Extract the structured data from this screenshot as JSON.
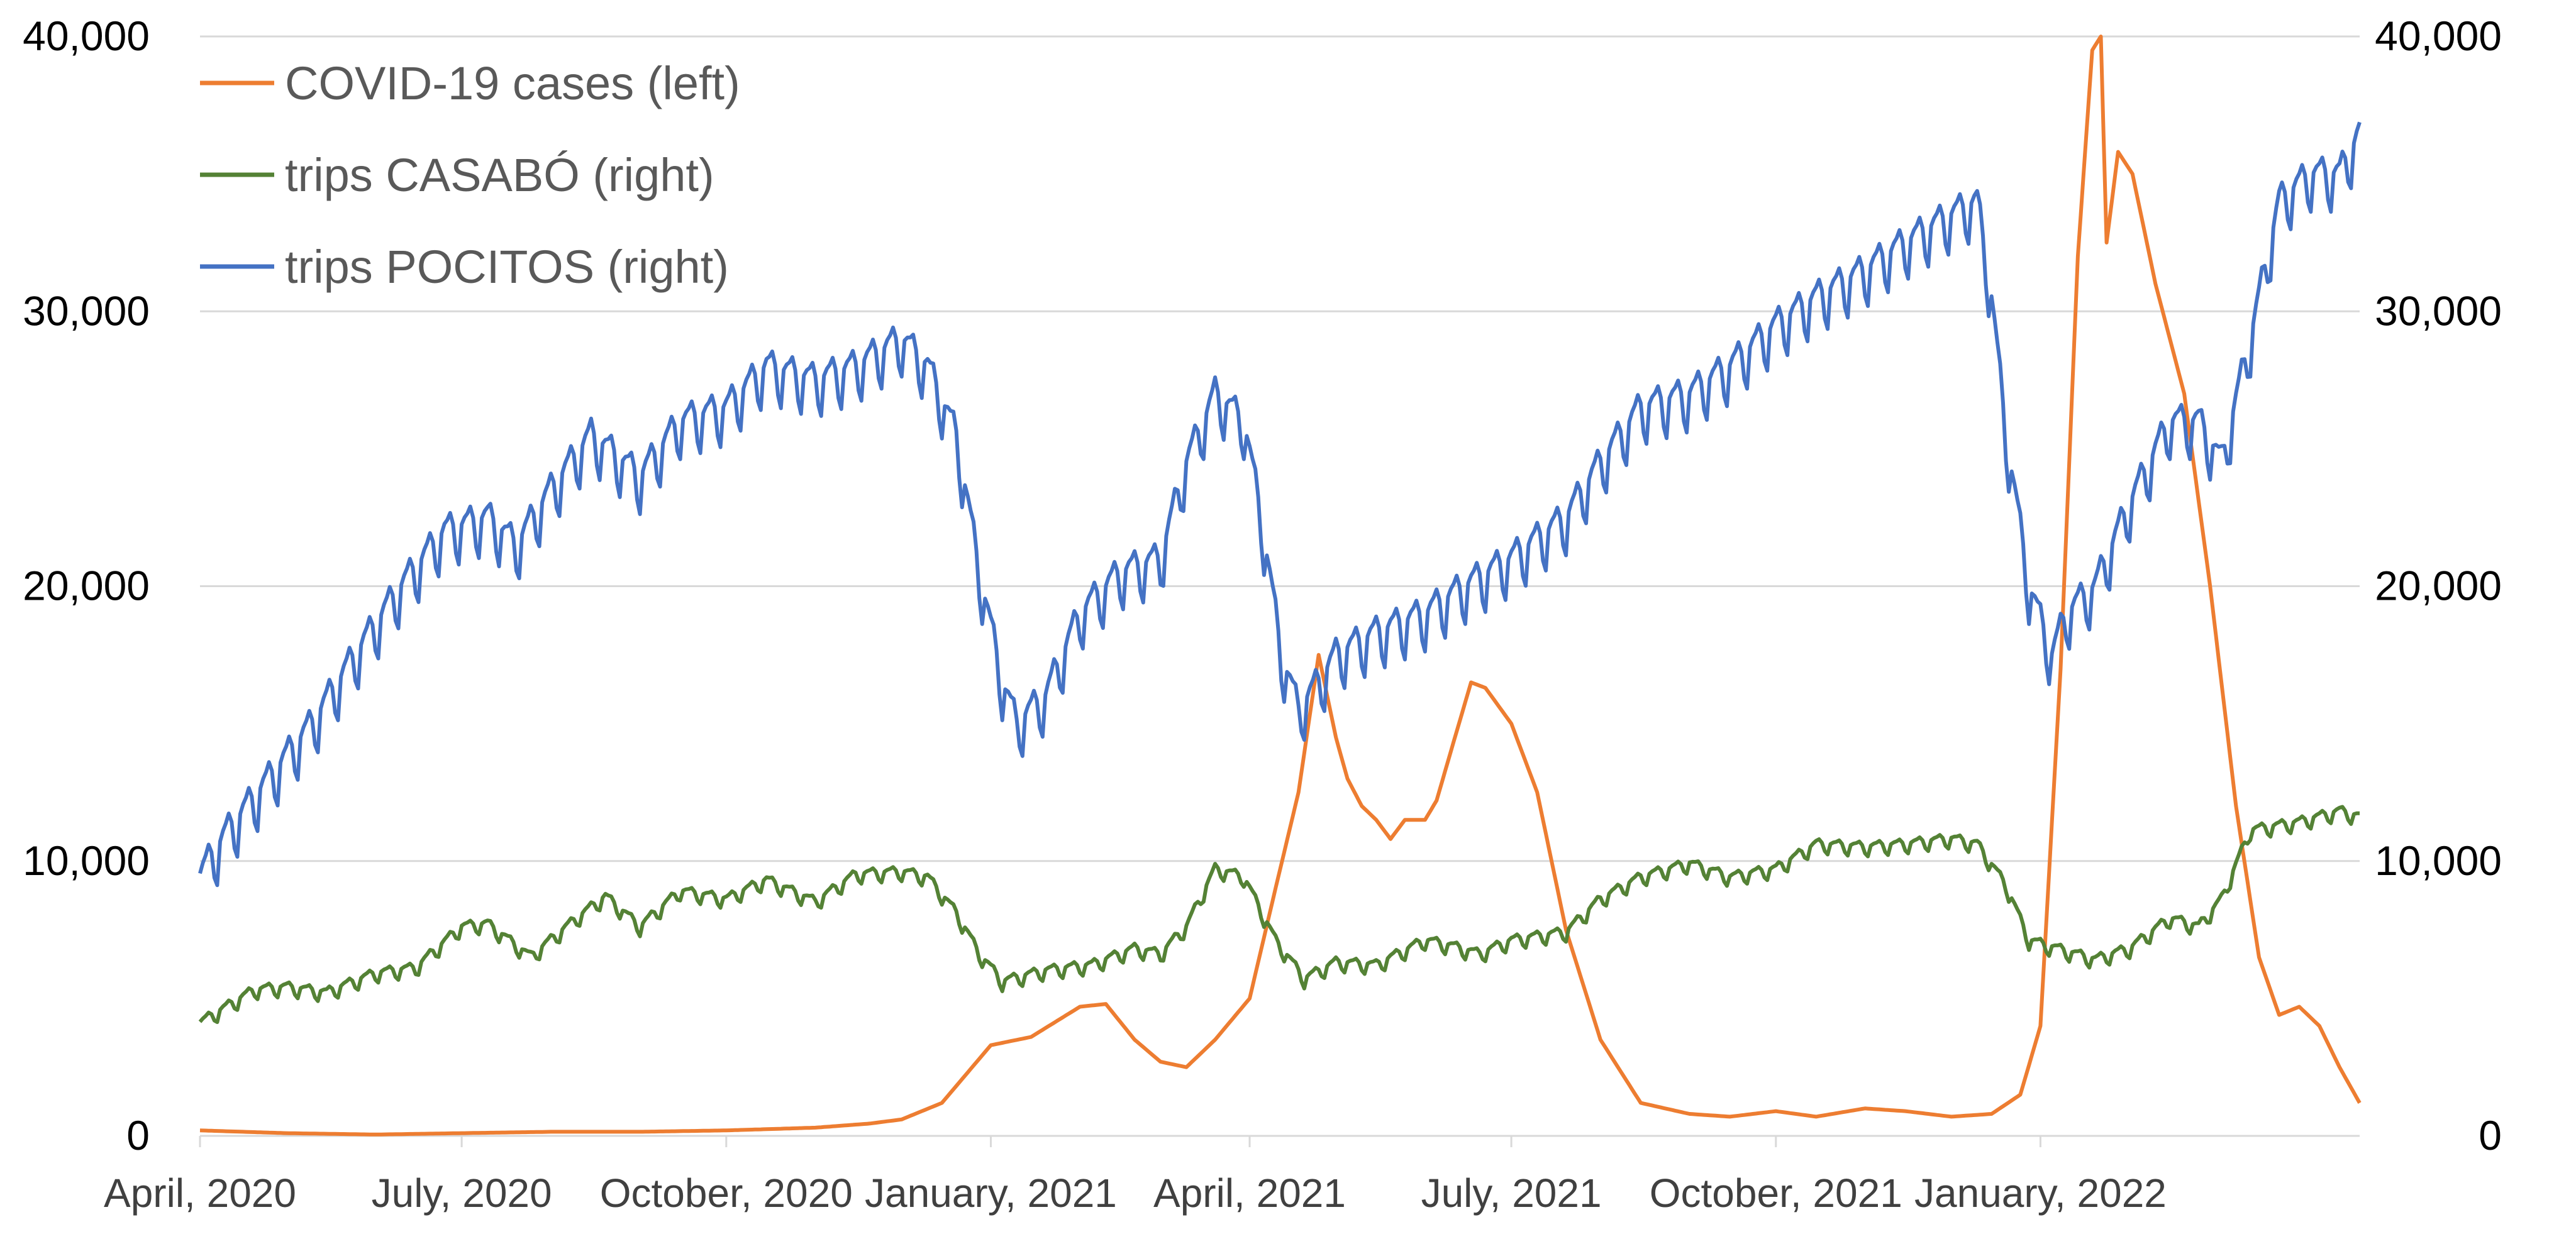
{
  "chart_data": {
    "type": "line",
    "title": "",
    "xlabel": "",
    "ylabel": "",
    "grid": true,
    "legend_position": "top-left",
    "x_ticks": [
      "April, 2020",
      "July, 2020",
      "October, 2020",
      "January, 2021",
      "April, 2021",
      "July, 2021",
      "October, 2021",
      "January, 2022"
    ],
    "x_range": [
      "2020-04-01",
      "2022-04-22"
    ],
    "y_left": {
      "lim": [
        0,
        40000
      ],
      "ticks": [
        "0",
        "10,000",
        "20,000",
        "30,000",
        "40,000"
      ]
    },
    "y_right": {
      "lim": [
        0,
        40000
      ],
      "ticks": [
        "0",
        "10,000",
        "20,000",
        "30,000",
        "40,000"
      ]
    },
    "series": [
      {
        "name": "COVID-19 cases (left)",
        "axis": "left",
        "color": "#ED7D31",
        "weekly_oscillation": 0.0,
        "points": [
          [
            "2020-04-01",
            200
          ],
          [
            "2020-05-01",
            100
          ],
          [
            "2020-06-01",
            50
          ],
          [
            "2020-07-01",
            100
          ],
          [
            "2020-08-01",
            150
          ],
          [
            "2020-09-01",
            150
          ],
          [
            "2020-10-01",
            200
          ],
          [
            "2020-11-01",
            300
          ],
          [
            "2020-11-20",
            450
          ],
          [
            "2020-12-01",
            600
          ],
          [
            "2020-12-15",
            1200
          ],
          [
            "2021-01-01",
            3300
          ],
          [
            "2021-01-15",
            3600
          ],
          [
            "2021-02-01",
            4700
          ],
          [
            "2021-02-10",
            4800
          ],
          [
            "2021-02-20",
            3500
          ],
          [
            "2021-03-01",
            2700
          ],
          [
            "2021-03-10",
            2500
          ],
          [
            "2021-03-20",
            3500
          ],
          [
            "2021-04-01",
            5000
          ],
          [
            "2021-04-10",
            9000
          ],
          [
            "2021-04-18",
            12500
          ],
          [
            "2021-04-25",
            17500
          ],
          [
            "2021-05-01",
            14500
          ],
          [
            "2021-05-05",
            13000
          ],
          [
            "2021-05-10",
            12000
          ],
          [
            "2021-05-15",
            11500
          ],
          [
            "2021-05-20",
            10800
          ],
          [
            "2021-05-25",
            11500
          ],
          [
            "2021-06-01",
            11500
          ],
          [
            "2021-06-05",
            12200
          ],
          [
            "2021-06-10",
            14000
          ],
          [
            "2021-06-17",
            16500
          ],
          [
            "2021-06-22",
            16300
          ],
          [
            "2021-07-01",
            15000
          ],
          [
            "2021-07-10",
            12500
          ],
          [
            "2021-07-20",
            7500
          ],
          [
            "2021-08-01",
            3500
          ],
          [
            "2021-08-15",
            1200
          ],
          [
            "2021-09-01",
            800
          ],
          [
            "2021-09-15",
            700
          ],
          [
            "2021-10-01",
            900
          ],
          [
            "2021-10-15",
            700
          ],
          [
            "2021-11-01",
            1000
          ],
          [
            "2021-11-15",
            900
          ],
          [
            "2021-12-01",
            700
          ],
          [
            "2021-12-15",
            800
          ],
          [
            "2021-12-25",
            1500
          ],
          [
            "2022-01-01",
            4000
          ],
          [
            "2022-01-08",
            17000
          ],
          [
            "2022-01-14",
            32000
          ],
          [
            "2022-01-19",
            39500
          ],
          [
            "2022-01-22",
            40000
          ],
          [
            "2022-01-24",
            32500
          ],
          [
            "2022-01-28",
            35800
          ],
          [
            "2022-02-02",
            35000
          ],
          [
            "2022-02-10",
            31000
          ],
          [
            "2022-02-20",
            27000
          ],
          [
            "2022-03-01",
            20000
          ],
          [
            "2022-03-10",
            12000
          ],
          [
            "2022-03-18",
            6500
          ],
          [
            "2022-03-25",
            4400
          ],
          [
            "2022-04-01",
            4700
          ],
          [
            "2022-04-08",
            4000
          ],
          [
            "2022-04-15",
            2500
          ],
          [
            "2022-04-22",
            1200
          ]
        ]
      },
      {
        "name": "trips CASABÓ (right)",
        "axis": "right",
        "color": "#548235",
        "weekly_oscillation": 300,
        "points": [
          [
            "2020-04-01",
            4000
          ],
          [
            "2020-04-20",
            5200
          ],
          [
            "2020-05-01",
            5300
          ],
          [
            "2020-05-15",
            5100
          ],
          [
            "2020-06-01",
            5800
          ],
          [
            "2020-06-15",
            6000
          ],
          [
            "2020-07-01",
            7500
          ],
          [
            "2020-07-10",
            7600
          ],
          [
            "2020-07-25",
            6400
          ],
          [
            "2020-08-10",
            7800
          ],
          [
            "2020-08-20",
            8600
          ],
          [
            "2020-09-01",
            7500
          ],
          [
            "2020-09-15",
            8800
          ],
          [
            "2020-10-01",
            8500
          ],
          [
            "2020-10-15",
            9200
          ],
          [
            "2020-11-01",
            8400
          ],
          [
            "2020-11-15",
            9400
          ],
          [
            "2020-12-01",
            9500
          ],
          [
            "2020-12-10",
            9300
          ],
          [
            "2020-12-20",
            8000
          ],
          [
            "2020-12-28",
            6500
          ],
          [
            "2021-01-05",
            5500
          ],
          [
            "2021-01-20",
            5900
          ],
          [
            "2021-02-05",
            6100
          ],
          [
            "2021-02-20",
            6700
          ],
          [
            "2021-03-01",
            6500
          ],
          [
            "2021-03-10",
            7500
          ],
          [
            "2021-03-20",
            9600
          ],
          [
            "2021-03-30",
            9300
          ],
          [
            "2021-04-10",
            7000
          ],
          [
            "2021-04-20",
            5600
          ],
          [
            "2021-05-01",
            6200
          ],
          [
            "2021-05-15",
            6100
          ],
          [
            "2021-06-01",
            7000
          ],
          [
            "2021-06-10",
            6800
          ],
          [
            "2021-06-20",
            6500
          ],
          [
            "2021-07-01",
            7000
          ],
          [
            "2021-07-20",
            7300
          ],
          [
            "2021-08-01",
            8500
          ],
          [
            "2021-08-15",
            9300
          ],
          [
            "2021-09-01",
            9800
          ],
          [
            "2021-09-15",
            9300
          ],
          [
            "2021-10-01",
            9600
          ],
          [
            "2021-10-15",
            10500
          ],
          [
            "2021-11-01",
            10400
          ],
          [
            "2021-11-15",
            10500
          ],
          [
            "2021-12-01",
            10700
          ],
          [
            "2021-12-10",
            10500
          ],
          [
            "2021-12-20",
            9000
          ],
          [
            "2021-12-28",
            7000
          ],
          [
            "2022-01-10",
            6600
          ],
          [
            "2022-01-20",
            6300
          ],
          [
            "2022-02-01",
            6700
          ],
          [
            "2022-02-15",
            7800
          ],
          [
            "2022-02-25",
            7500
          ],
          [
            "2022-03-05",
            8500
          ],
          [
            "2022-03-15",
            11000
          ],
          [
            "2022-04-01",
            11300
          ],
          [
            "2022-04-15",
            11700
          ],
          [
            "2022-04-22",
            11500
          ]
        ]
      },
      {
        "name": "trips POCITOS (right)",
        "axis": "right",
        "color": "#4472C4",
        "weekly_oscillation": 1100,
        "points": [
          [
            "2020-04-01",
            9000
          ],
          [
            "2020-04-10",
            10500
          ],
          [
            "2020-04-25",
            12500
          ],
          [
            "2020-05-10",
            14500
          ],
          [
            "2020-05-25",
            17000
          ],
          [
            "2020-06-10",
            19500
          ],
          [
            "2020-06-25",
            21500
          ],
          [
            "2020-07-10",
            22000
          ],
          [
            "2020-07-20",
            21000
          ],
          [
            "2020-08-01",
            23000
          ],
          [
            "2020-08-15",
            25000
          ],
          [
            "2020-09-01",
            23500
          ],
          [
            "2020-09-15",
            25500
          ],
          [
            "2020-10-01",
            26000
          ],
          [
            "2020-10-15",
            27500
          ],
          [
            "2020-11-01",
            27000
          ],
          [
            "2020-11-15",
            27500
          ],
          [
            "2020-12-01",
            28500
          ],
          [
            "2020-12-10",
            27500
          ],
          [
            "2020-12-20",
            25000
          ],
          [
            "2020-12-28",
            20000
          ],
          [
            "2021-01-05",
            16000
          ],
          [
            "2021-01-10",
            14500
          ],
          [
            "2021-01-20",
            15500
          ],
          [
            "2021-02-01",
            18500
          ],
          [
            "2021-02-15",
            20000
          ],
          [
            "2021-03-01",
            20500
          ],
          [
            "2021-03-10",
            24000
          ],
          [
            "2021-03-20",
            26500
          ],
          [
            "2021-03-30",
            25500
          ],
          [
            "2021-04-05",
            22000
          ],
          [
            "2021-04-12",
            17000
          ],
          [
            "2021-04-18",
            15000
          ],
          [
            "2021-04-25",
            16000
          ],
          [
            "2021-05-01",
            17000
          ],
          [
            "2021-05-15",
            17800
          ],
          [
            "2021-06-01",
            18500
          ],
          [
            "2021-06-15",
            19500
          ],
          [
            "2021-07-01",
            20500
          ],
          [
            "2021-07-20",
            22000
          ],
          [
            "2021-08-01",
            24000
          ],
          [
            "2021-08-15",
            26000
          ],
          [
            "2021-09-01",
            26500
          ],
          [
            "2021-09-15",
            27500
          ],
          [
            "2021-10-01",
            29000
          ],
          [
            "2021-10-15",
            30000
          ],
          [
            "2021-11-01",
            31000
          ],
          [
            "2021-11-15",
            32000
          ],
          [
            "2021-12-01",
            33000
          ],
          [
            "2021-12-10",
            33500
          ],
          [
            "2021-12-15",
            30000
          ],
          [
            "2021-12-20",
            25000
          ],
          [
            "2021-12-28",
            19500
          ],
          [
            "2022-01-05",
            17000
          ],
          [
            "2022-01-10",
            18500
          ],
          [
            "2022-01-20",
            19500
          ],
          [
            "2022-02-01",
            22500
          ],
          [
            "2022-02-15",
            25500
          ],
          [
            "2022-02-25",
            25500
          ],
          [
            "2022-03-05",
            24000
          ],
          [
            "2022-03-15",
            28500
          ],
          [
            "2022-03-25",
            33500
          ],
          [
            "2022-04-05",
            34500
          ],
          [
            "2022-04-15",
            34500
          ],
          [
            "2022-04-22",
            36000
          ]
        ]
      }
    ]
  }
}
